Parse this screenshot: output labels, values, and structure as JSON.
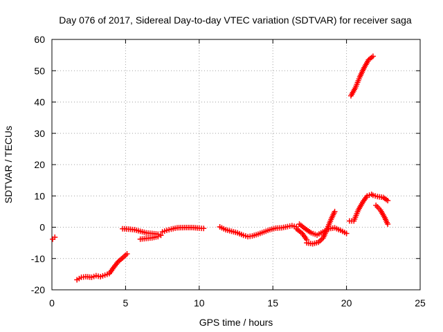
{
  "chart_data": {
    "type": "scatter",
    "title": "Day 076 of 2017, Sidereal Day-to-day VTEC variation (SDTVAR) for receiver saga",
    "xlabel": "GPS time / hours",
    "ylabel": "SDTVAR / TECUs",
    "xlim": [
      0,
      25
    ],
    "ylim": [
      -20,
      60
    ],
    "xticks": [
      "0",
      "5",
      "10",
      "15",
      "20",
      "25"
    ],
    "yticks": [
      "-20",
      "-10",
      "0",
      "10",
      "20",
      "30",
      "40",
      "50",
      "60"
    ],
    "grid": true,
    "marker": "plus",
    "color": "#ff0000",
    "segments": [
      {
        "name": "seg-0",
        "x": [
          0.05,
          0.2
        ],
        "y": [
          -3.8,
          -3.2
        ]
      },
      {
        "name": "seg-1",
        "x": [
          1.7,
          2.0,
          2.3,
          2.7,
          3.0,
          3.3,
          3.6,
          3.9,
          4.2,
          4.5,
          4.8,
          5.1
        ],
        "y": [
          -16.8,
          -16.0,
          -15.8,
          -16.0,
          -15.5,
          -15.8,
          -15.3,
          -14.8,
          -12.8,
          -11.0,
          -9.8,
          -8.5
        ]
      },
      {
        "name": "seg-2",
        "x": [
          4.8,
          5.2,
          5.6,
          6.0,
          6.4,
          6.8,
          7.2
        ],
        "y": [
          -0.5,
          -0.6,
          -0.8,
          -1.3,
          -1.8,
          -2.0,
          -2.2
        ]
      },
      {
        "name": "seg-3",
        "x": [
          6.0,
          6.4,
          6.8,
          7.2,
          7.4
        ],
        "y": [
          -3.8,
          -3.6,
          -3.4,
          -3.0,
          -2.6
        ]
      },
      {
        "name": "seg-4",
        "x": [
          7.5,
          7.8,
          8.1,
          8.5,
          9.0,
          9.5,
          10.0,
          10.3
        ],
        "y": [
          -1.5,
          -1.0,
          -0.6,
          -0.2,
          -0.1,
          -0.1,
          -0.3,
          -0.4
        ]
      },
      {
        "name": "seg-5",
        "x": [
          11.4,
          11.8,
          12.2,
          12.6,
          13.0,
          13.3,
          13.6,
          14.0,
          14.4,
          14.8,
          15.2,
          15.6,
          16.0,
          16.3,
          16.6
        ],
        "y": [
          0.1,
          -0.8,
          -1.3,
          -1.8,
          -2.6,
          -3.0,
          -2.8,
          -2.2,
          -1.5,
          -0.8,
          -0.3,
          -0.2,
          0.2,
          0.5,
          0.1
        ]
      },
      {
        "name": "seg-6",
        "x": [
          16.6,
          17.0,
          17.3
        ],
        "y": [
          -0.5,
          -2.0,
          -4.0
        ]
      },
      {
        "name": "seg-7",
        "x": [
          16.8,
          17.2,
          17.6,
          18.0,
          18.4,
          18.8,
          19.2,
          19.6,
          20.0
        ],
        "y": [
          1.0,
          -0.5,
          -1.8,
          -2.5,
          -1.5,
          -0.5,
          -0.2,
          -1.0,
          -2.0
        ]
      },
      {
        "name": "seg-8",
        "x": [
          17.3,
          17.7,
          18.1,
          18.4,
          18.6,
          18.8,
          19.0,
          19.2
        ],
        "y": [
          -5.0,
          -5.3,
          -4.8,
          -3.5,
          -1.5,
          0.8,
          3.0,
          5.0
        ]
      },
      {
        "name": "seg-9",
        "x": [
          20.2,
          20.5,
          20.8,
          21.1,
          21.4,
          21.7
        ],
        "y": [
          2.0,
          2.0,
          5.5,
          8.0,
          10.0,
          10.5
        ]
      },
      {
        "name": "seg-10",
        "x": [
          21.8,
          22.1,
          22.5,
          22.8
        ],
        "y": [
          10.2,
          9.8,
          9.5,
          8.5
        ]
      },
      {
        "name": "seg-11",
        "x": [
          22.0,
          22.3,
          22.6,
          22.8
        ],
        "y": [
          7.0,
          5.5,
          3.0,
          1.0
        ]
      },
      {
        "name": "seg-12",
        "x": [
          20.3,
          20.6,
          20.9,
          21.2,
          21.5,
          21.8
        ],
        "y": [
          42.0,
          44.5,
          48.0,
          51.0,
          53.5,
          54.6
        ]
      }
    ]
  }
}
